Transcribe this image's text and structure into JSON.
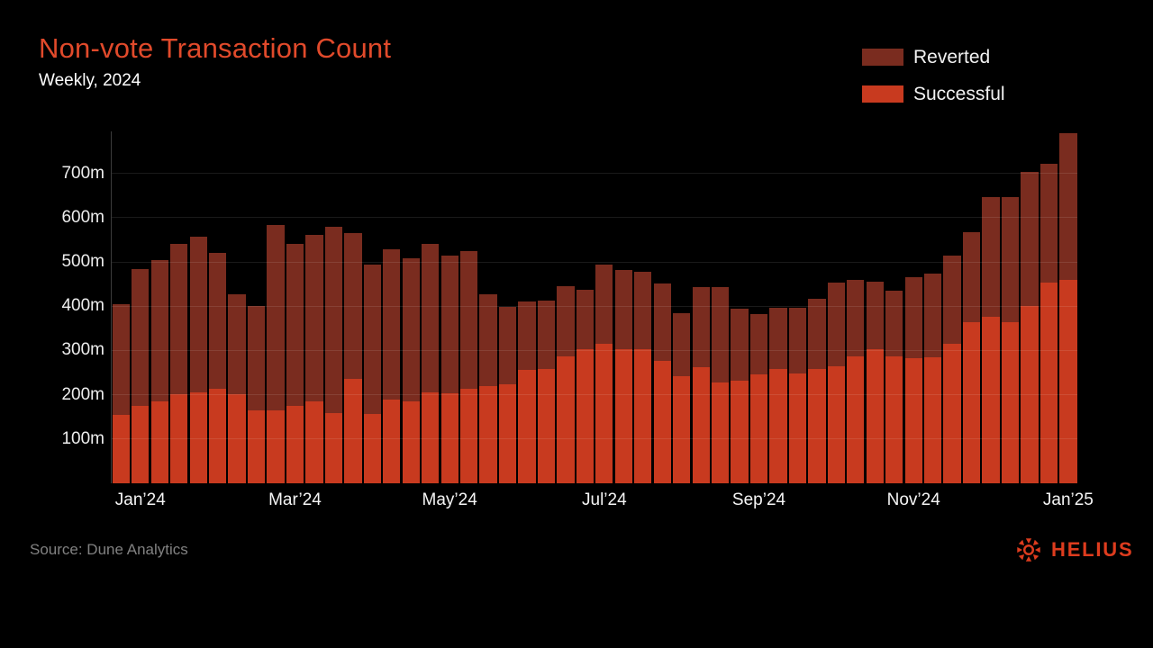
{
  "header": {
    "title": "Non-vote Transaction Count",
    "subtitle": "Weekly, 2024"
  },
  "legend": [
    {
      "label": "Reverted",
      "color": "#7A2C1F"
    },
    {
      "label": "Successful",
      "color": "#C83A1F"
    }
  ],
  "footer": {
    "source": "Source: Dune Analytics",
    "brand_name": "HELIUS",
    "brand_icon": "helius-sun-icon",
    "brand_color": "#DE3C1E"
  },
  "colors": {
    "background": "#000000",
    "title_accent": "#E14A2B",
    "reverted": "#7A2C1F",
    "successful": "#C83A1F",
    "axis_line": "#3C3C3C",
    "gridline": "#1A1A1A",
    "tick_text": "#EDEDED",
    "source_text": "#818181"
  },
  "chart_data": {
    "type": "bar",
    "stacked": true,
    "title": "Non-vote Transaction Count",
    "subtitle": "Weekly, 2024",
    "unit": "millions of transactions",
    "value_suffix": "m",
    "grid": "horizontal",
    "legend_position": "top-right",
    "ylim": [
      0,
      800
    ],
    "y_ticks": [
      "100m",
      "200m",
      "300m",
      "400m",
      "500m",
      "600m",
      "700m"
    ],
    "y_tick_values": [
      100,
      200,
      300,
      400,
      500,
      600,
      700
    ],
    "x_tick_labels": [
      "Jan’24",
      "Mar’24",
      "May’24",
      "Jul’24",
      "Sep’24",
      "Nov’24",
      "Jan’25"
    ],
    "x_tick_bar_indices": [
      1,
      9,
      17,
      25,
      33,
      41,
      49
    ],
    "weeks_count": 50,
    "series": [
      {
        "name": "Successful",
        "color": "#C83A1F",
        "values": [
          155,
          175,
          186,
          201,
          205,
          214,
          201,
          164,
          164,
          175,
          185,
          158,
          235,
          156,
          190,
          185,
          205,
          203,
          213,
          220,
          223,
          257,
          259,
          286,
          303,
          315,
          303,
          302,
          277,
          241,
          262,
          227,
          231,
          245,
          259,
          247,
          259,
          264,
          287,
          303,
          287,
          283,
          285,
          315,
          364,
          376,
          364,
          401,
          453,
          460
        ]
      },
      {
        "name": "Reverted",
        "color": "#7A2C1F",
        "values": [
          250,
          308,
          319,
          339,
          352,
          306,
          226,
          236,
          420,
          366,
          377,
          422,
          331,
          338,
          338,
          324,
          336,
          311,
          311,
          206,
          175,
          153,
          153,
          160,
          135,
          178,
          179,
          175,
          174,
          143,
          181,
          216,
          163,
          138,
          138,
          150,
          157,
          189,
          173,
          152,
          148,
          183,
          189,
          199,
          204,
          270,
          282,
          302,
          268,
          330
        ]
      }
    ]
  }
}
